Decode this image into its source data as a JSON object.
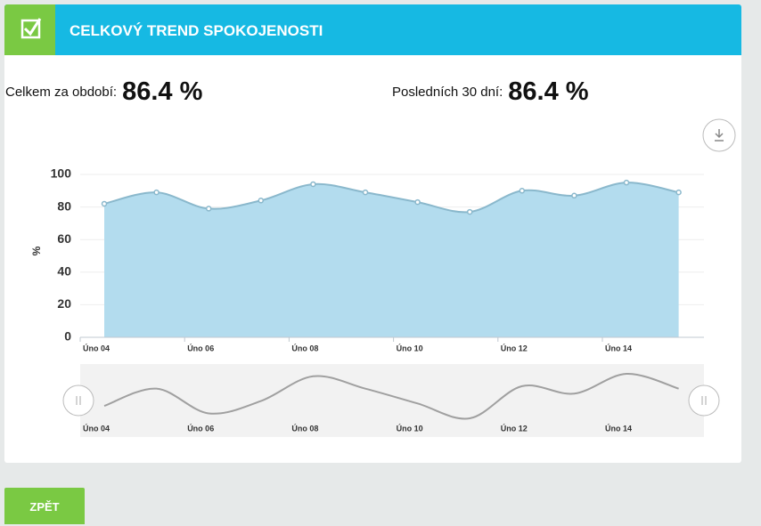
{
  "header": {
    "title": "CELKOVÝ TREND SPOKOJENOSTI"
  },
  "stats": [
    {
      "label": "Celkem za období:",
      "value": "86.4 %"
    },
    {
      "label": "Posledních 30 dní:",
      "value": "86.4 %"
    }
  ],
  "chart_data": {
    "type": "area",
    "ylabel": "%",
    "categories": [
      "Úno 04",
      null,
      "Úno 06",
      null,
      "Úno 08",
      null,
      "Úno 10",
      null,
      "Úno 12",
      null,
      "Úno 14",
      null
    ],
    "values": [
      82,
      89,
      79,
      84,
      94,
      89,
      83,
      77,
      90,
      87,
      95,
      89
    ],
    "color": "#b3dcee",
    "line_color": "#8ab8cc",
    "navigator_color": "#a0a0a0",
    "ylim": [
      0,
      100
    ],
    "yticks": [
      0,
      20,
      40,
      60,
      80,
      100
    ],
    "grid": true,
    "navigator": true
  },
  "button": {
    "label": "ZPĚT"
  }
}
